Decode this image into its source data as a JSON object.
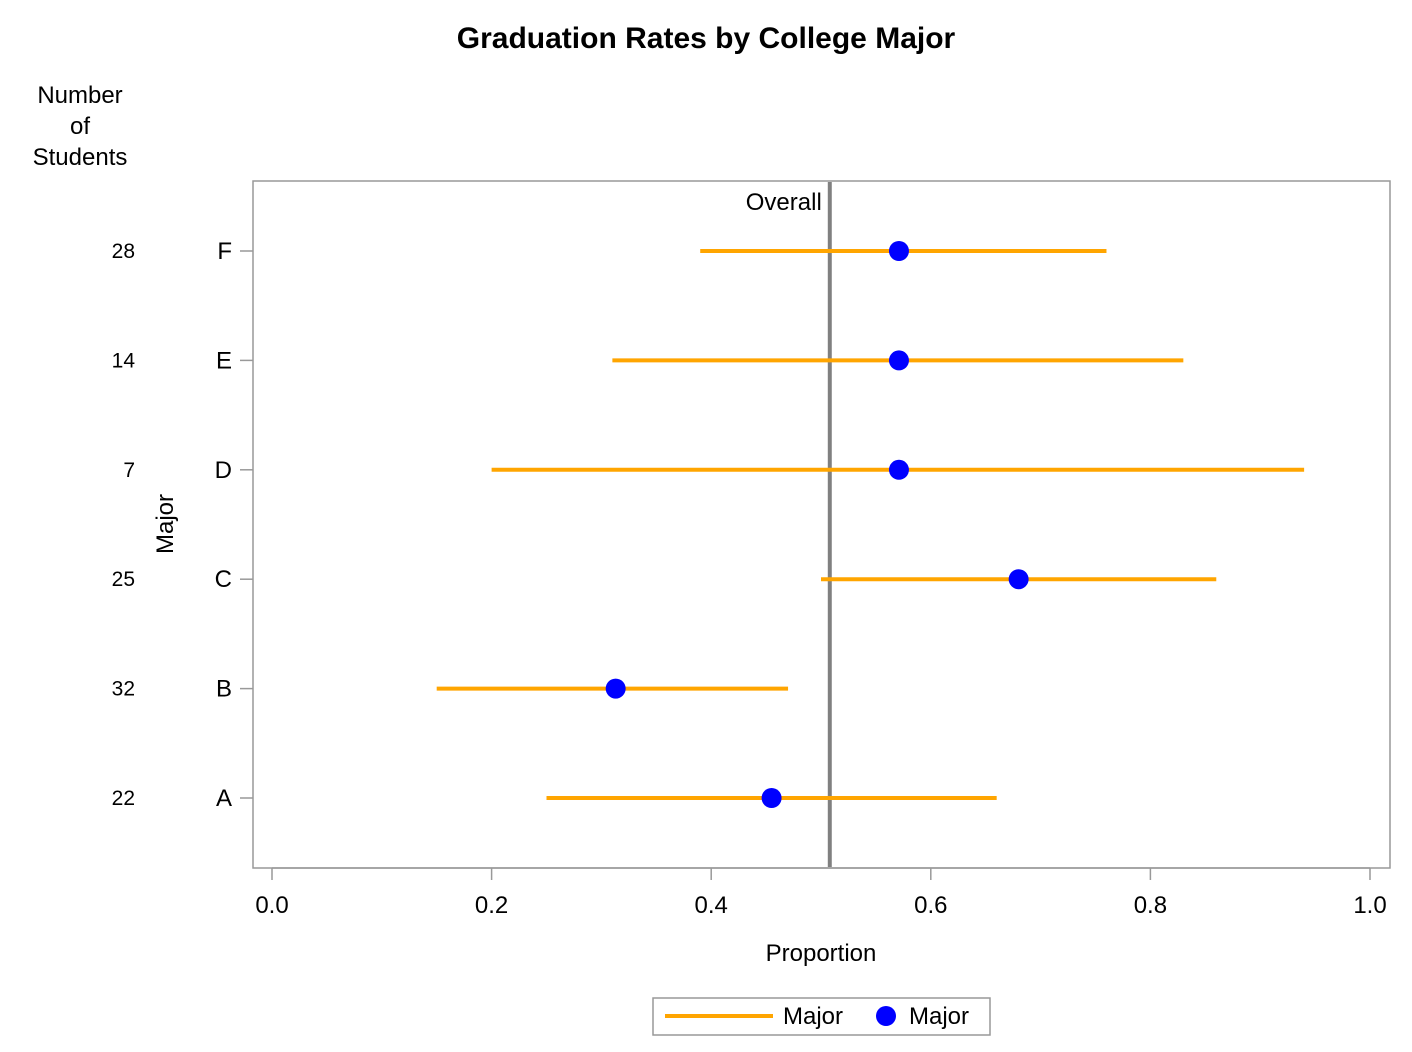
{
  "chart_data": {
    "type": "scatter",
    "title": "Graduation Rates by College Major",
    "xlabel": "Proportion",
    "ylabel": "Major",
    "count_header": [
      "Number",
      "of",
      "Students"
    ],
    "xlim": [
      0.0,
      1.0
    ],
    "xticks": [
      "0.0",
      "0.2",
      "0.4",
      "0.6",
      "0.8",
      "1.0"
    ],
    "categories": [
      "F",
      "E",
      "D",
      "C",
      "B",
      "A"
    ],
    "counts": [
      "28",
      "14",
      "7",
      "25",
      "32",
      "22"
    ],
    "series": [
      {
        "name": "Major",
        "kind": "interval",
        "lower": [
          0.39,
          0.31,
          0.2,
          0.5,
          0.15,
          0.25
        ],
        "upper": [
          0.76,
          0.83,
          0.94,
          0.86,
          0.47,
          0.66
        ]
      },
      {
        "name": "Major",
        "kind": "point",
        "values": [
          0.571,
          0.571,
          0.571,
          0.68,
          0.313,
          0.455
        ]
      }
    ],
    "reference_line": {
      "label": "Overall",
      "value": 0.508
    },
    "legend_position": "bottom-center",
    "grid": false,
    "colors": {
      "interval": "#FFA500",
      "point": "#0000FF",
      "reference": "#808080",
      "frame": "#999999"
    }
  }
}
